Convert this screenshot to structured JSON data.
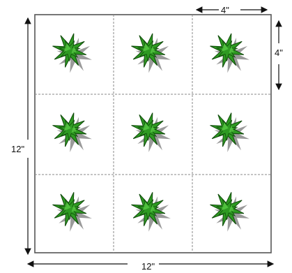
{
  "diagram": {
    "grid": {
      "rows": 3,
      "cols": 3
    },
    "dimensions": {
      "cell_width_label": "4\"",
      "cell_height_label": "4\"",
      "total_width_label": "12\"",
      "total_height_label": "12\""
    },
    "plant_icon": "leafy-plant-icon",
    "colors": {
      "border": "#555555",
      "grid_lines": "#8a8a8a",
      "leaf": "#2e9a22",
      "leaf_highlight": "#5fd24a",
      "leaf_outline": "#0f4a0a",
      "shadow": "#9a9a9a",
      "arrow": "#111111"
    }
  }
}
